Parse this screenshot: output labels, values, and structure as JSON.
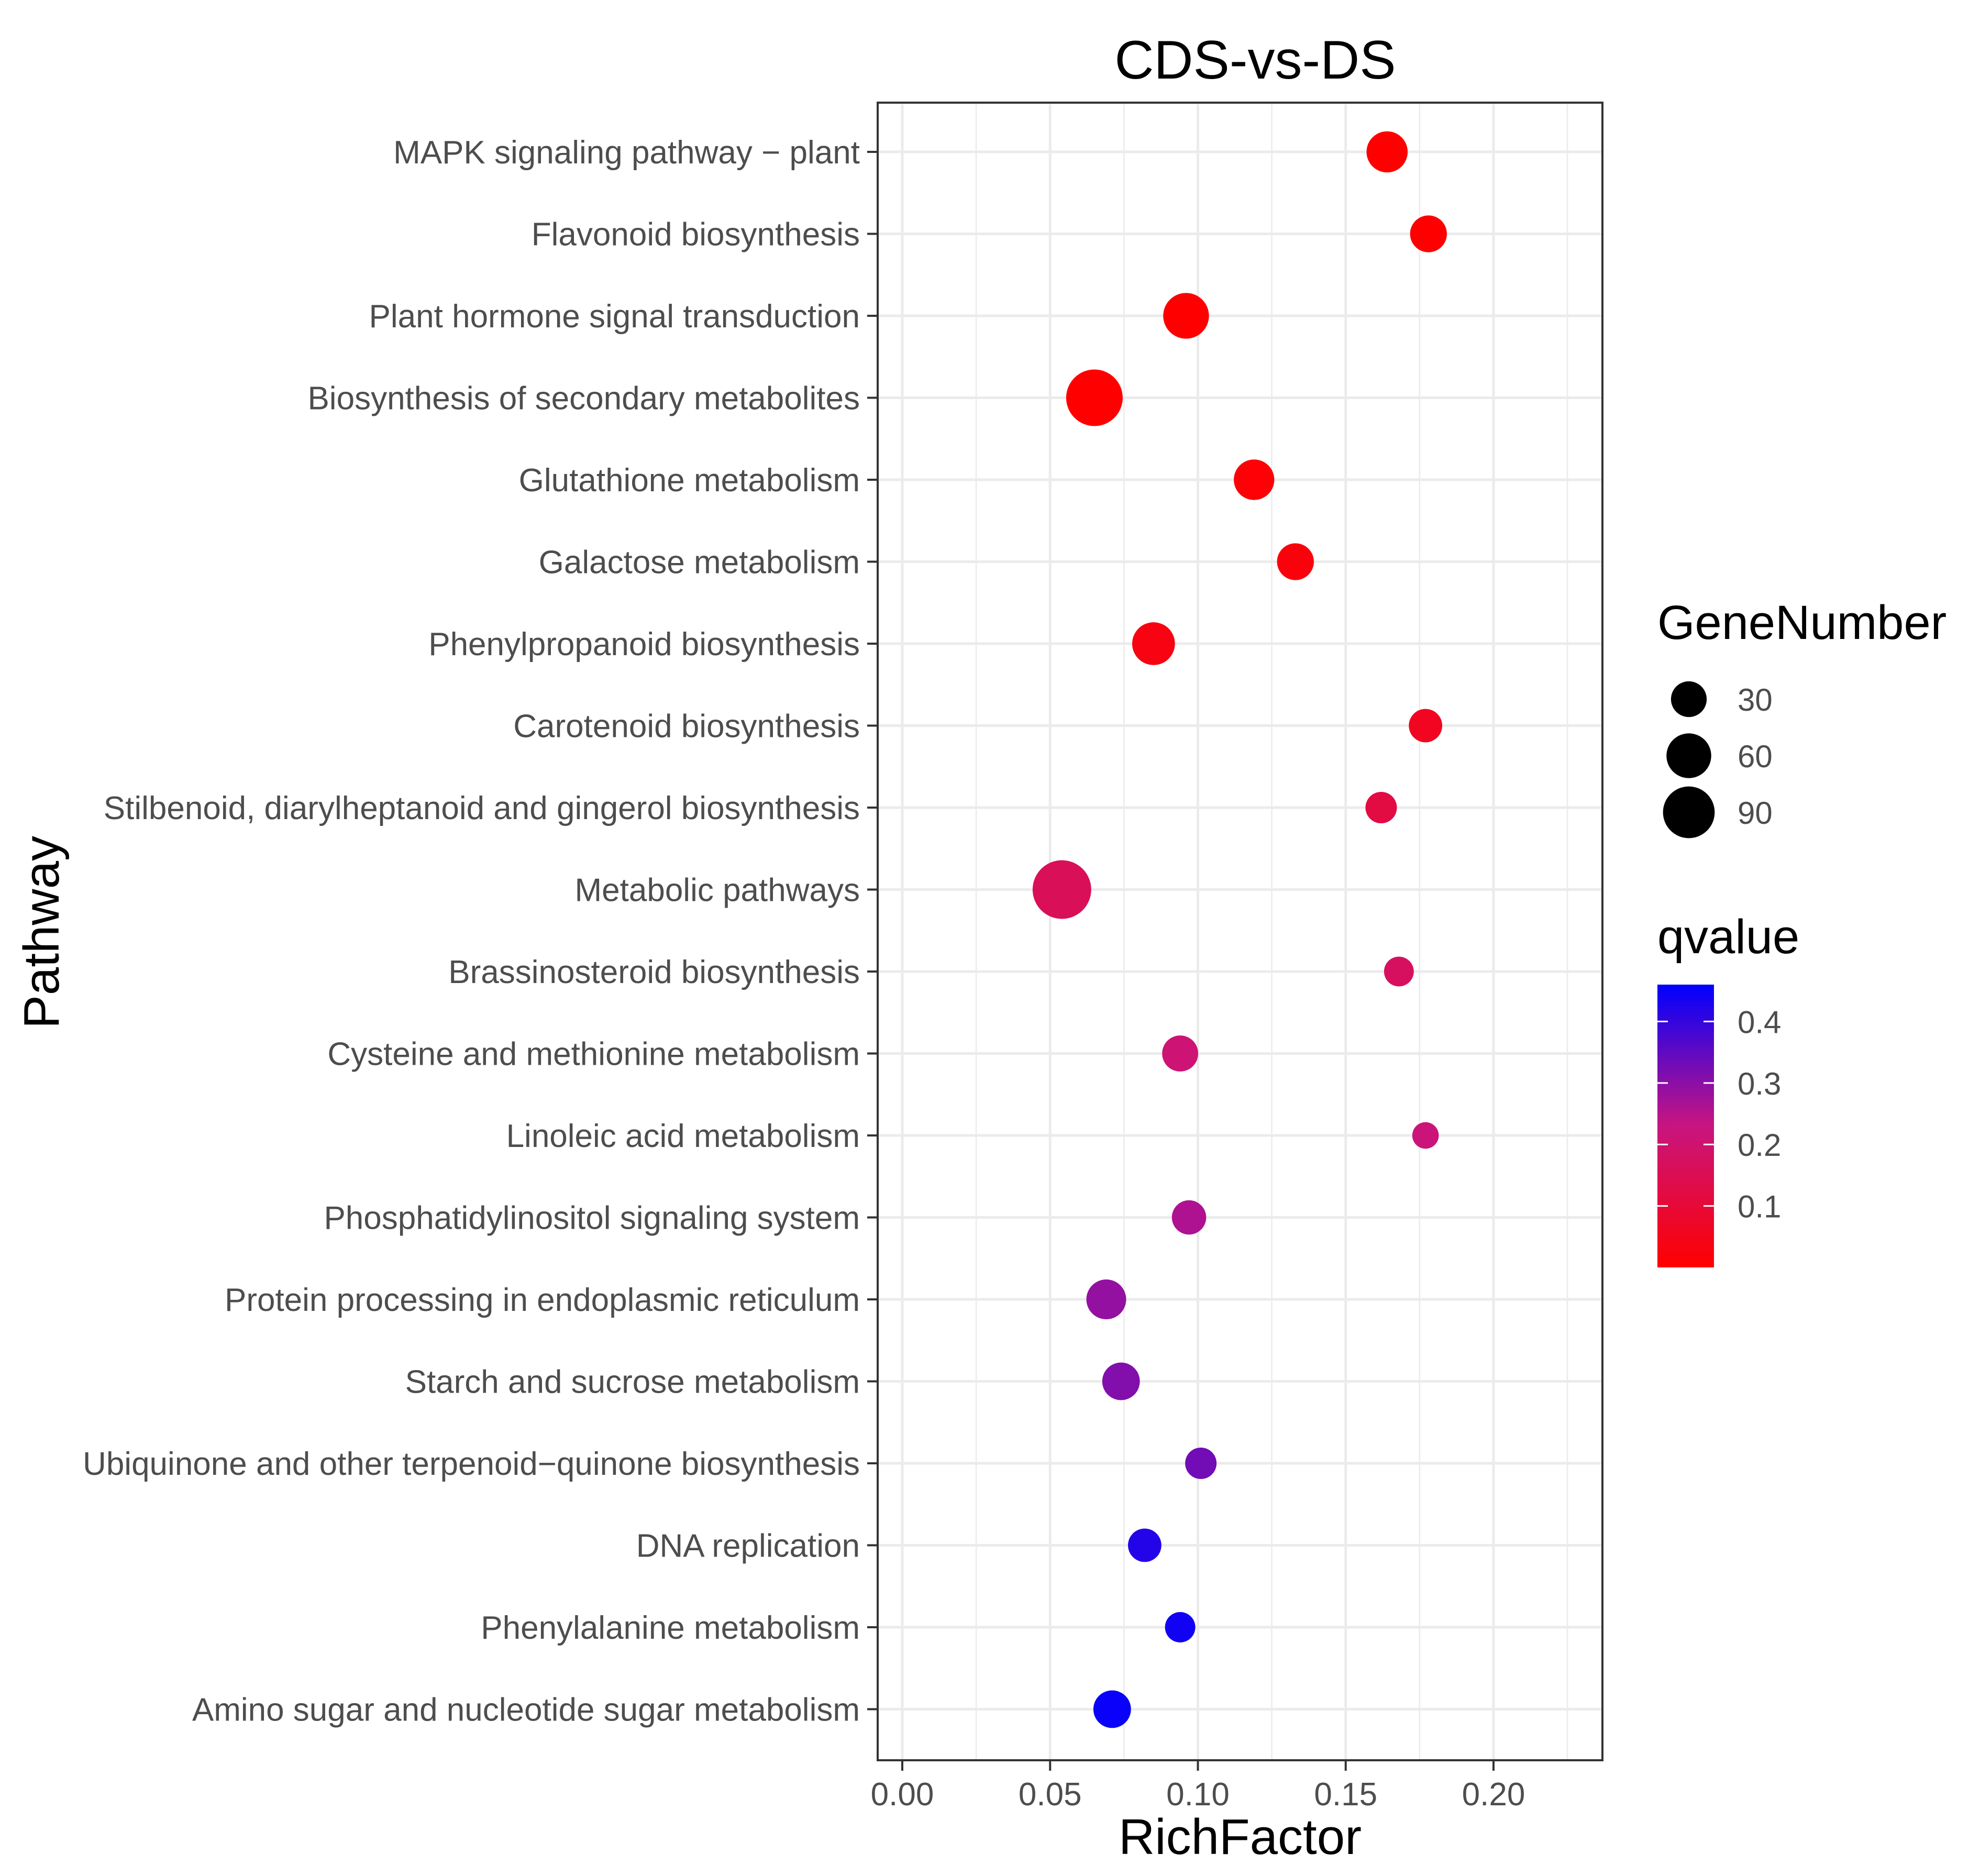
{
  "chart_data": {
    "type": "scatter",
    "title": "CDS-vs-DS",
    "xlabel": "RichFactor",
    "ylabel": "Pathway",
    "xlim": [
      -0.008,
      0.238
    ],
    "xticks": [
      0.0,
      0.05,
      0.1,
      0.15,
      0.2
    ],
    "xtick_labels": [
      "0.00",
      "0.05",
      "0.10",
      "0.15",
      "0.20"
    ],
    "grid": true,
    "points": [
      {
        "pathway": "MAPK signaling pathway − plant",
        "rich_factor": 0.164,
        "gene_number": 40,
        "qvalue": 0.0
      },
      {
        "pathway": "Flavonoid biosynthesis",
        "rich_factor": 0.178,
        "gene_number": 28,
        "qvalue": 0.0
      },
      {
        "pathway": "Plant hormone signal transduction",
        "rich_factor": 0.096,
        "gene_number": 55,
        "qvalue": 0.0
      },
      {
        "pathway": "Biosynthesis of secondary metabolites",
        "rich_factor": 0.065,
        "gene_number": 100,
        "qvalue": 0.0
      },
      {
        "pathway": "Glutathione metabolism",
        "rich_factor": 0.119,
        "gene_number": 38,
        "qvalue": 0.01
      },
      {
        "pathway": "Galactose metabolism",
        "rich_factor": 0.133,
        "gene_number": 28,
        "qvalue": 0.02
      },
      {
        "pathway": "Phenylpropanoid biosynthesis",
        "rich_factor": 0.085,
        "gene_number": 45,
        "qvalue": 0.03
      },
      {
        "pathway": "Carotenoid biosynthesis",
        "rich_factor": 0.177,
        "gene_number": 20,
        "qvalue": 0.06
      },
      {
        "pathway": "Stilbenoid, diarylheptanoid and gingerol biosynthesis",
        "rich_factor": 0.162,
        "gene_number": 16,
        "qvalue": 0.12
      },
      {
        "pathway": "Metabolic pathways",
        "rich_factor": 0.054,
        "gene_number": 110,
        "qvalue": 0.16
      },
      {
        "pathway": "Brassinosteroid biosynthesis",
        "rich_factor": 0.168,
        "gene_number": 13,
        "qvalue": 0.17
      },
      {
        "pathway": "Cysteine and methionine metabolism",
        "rich_factor": 0.094,
        "gene_number": 26,
        "qvalue": 0.21
      },
      {
        "pathway": "Linoleic acid metabolism",
        "rich_factor": 0.177,
        "gene_number": 8,
        "qvalue": 0.22
      },
      {
        "pathway": "Phosphatidylinositol signaling system",
        "rich_factor": 0.097,
        "gene_number": 22,
        "qvalue": 0.26
      },
      {
        "pathway": "Protein processing in endoplasmic reticulum",
        "rich_factor": 0.069,
        "gene_number": 36,
        "qvalue": 0.29
      },
      {
        "pathway": "Starch and sucrose metabolism",
        "rich_factor": 0.074,
        "gene_number": 30,
        "qvalue": 0.31
      },
      {
        "pathway": "Ubiquinone and other terpenoid−quinone biosynthesis",
        "rich_factor": 0.101,
        "gene_number": 16,
        "qvalue": 0.33
      },
      {
        "pathway": "DNA replication",
        "rich_factor": 0.082,
        "gene_number": 20,
        "qvalue": 0.42
      },
      {
        "pathway": "Phenylalanine metabolism",
        "rich_factor": 0.094,
        "gene_number": 14,
        "qvalue": 0.44
      },
      {
        "pathway": "Amino sugar and nucleotide sugar metabolism",
        "rich_factor": 0.071,
        "gene_number": 30,
        "qvalue": 0.45
      }
    ],
    "size_legend": {
      "title": "GeneNumber",
      "values": [
        30,
        60,
        90
      ],
      "labels": [
        "30",
        "60",
        "90"
      ]
    },
    "color_legend": {
      "title": "qvalue",
      "range": [
        0.0,
        0.46
      ],
      "ticks": [
        0.1,
        0.2,
        0.3,
        0.4
      ],
      "tick_labels": [
        "0.1",
        "0.2",
        "0.3",
        "0.4"
      ],
      "low_color": "#ff0000",
      "high_color": "#0000ff"
    }
  },
  "colors": {
    "panel_border": "#333333",
    "grid": "#ebebeb",
    "axis_text": "#4d4d4d",
    "title_text": "#000000",
    "legend_point": "#000000"
  }
}
